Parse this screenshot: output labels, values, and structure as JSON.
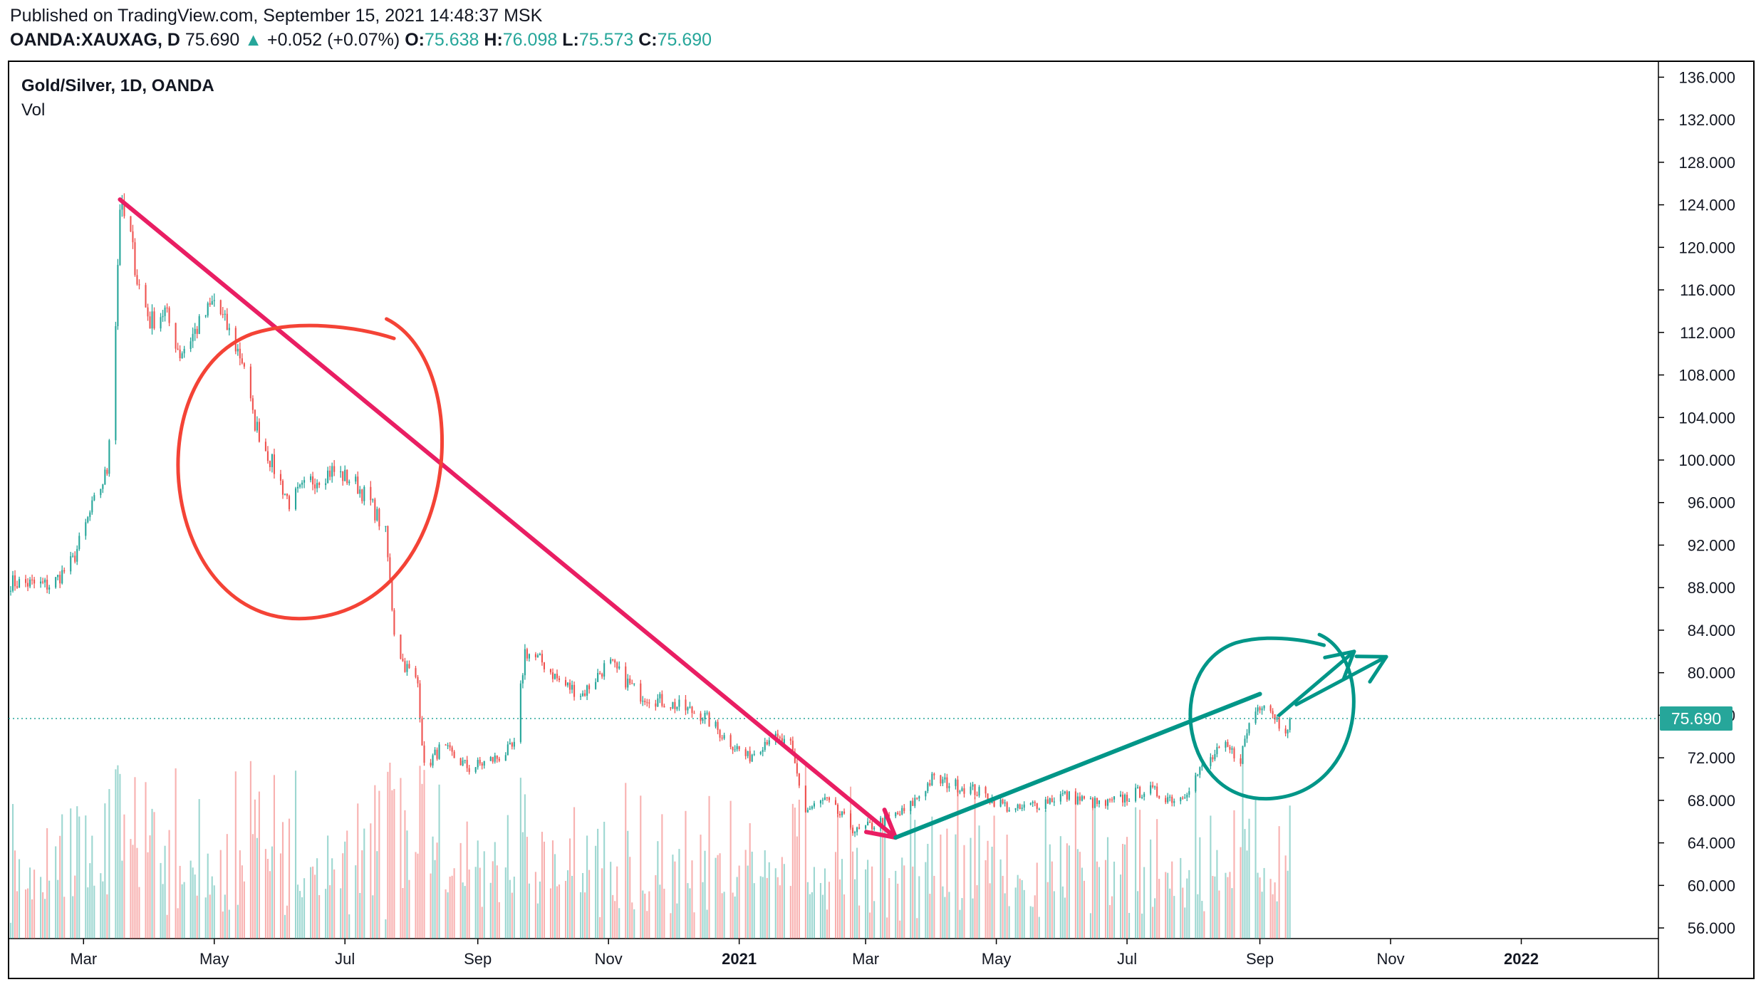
{
  "header": {
    "published": "Published on TradingView.com, September 15, 2021 14:48:37 MSK",
    "symbol": "OANDA:XAUXAG, D",
    "last": "75.690",
    "arrow": "▲",
    "change": "+0.052 (+0.07%)",
    "o_label": "O:",
    "o_value": "75.638",
    "h_label": "H:",
    "h_value": "76.098",
    "l_label": "L:",
    "l_value": "75.573",
    "c_label": "C:",
    "c_value": "75.690"
  },
  "legend": {
    "title": "Gold/Silver, 1D, OANDA",
    "indicator": "Vol"
  },
  "colors": {
    "up": "#26a69a",
    "down": "#ef5350",
    "downtrend_line": "#e91e63",
    "circle_red": "#f44336",
    "uptrend_teal": "#009688",
    "price_tag": "#26a69a",
    "axis_text": "#131722",
    "border": "#000000"
  },
  "chart_data": {
    "type": "candlestick",
    "symbol": "OANDA:XAUXAG",
    "timeframe": "1D",
    "x_ticks": [
      "Mar",
      "May",
      "Jul",
      "Sep",
      "Nov",
      "2021",
      "Mar",
      "May",
      "Jul",
      "Sep",
      "Nov",
      "2022"
    ],
    "y_ticks": [
      "136.000",
      "132.000",
      "128.000",
      "124.000",
      "120.000",
      "116.000",
      "112.000",
      "108.000",
      "104.000",
      "100.000",
      "96.000",
      "92.000",
      "88.000",
      "84.000",
      "80.000",
      "76.000",
      "72.000",
      "68.000",
      "64.000",
      "60.000",
      "56.000"
    ],
    "ylim": [
      55,
      137.5
    ],
    "last_price": "75.690",
    "last_price_value": 75.69,
    "xlim": [
      "2020-01-26",
      "2022-03-06"
    ],
    "series_close_anchors": [
      {
        "date": "2020-01-27",
        "value": 88.5
      },
      {
        "date": "2020-02-15",
        "value": 88.2
      },
      {
        "date": "2020-02-25",
        "value": 90.5
      },
      {
        "date": "2020-03-05",
        "value": 95.5
      },
      {
        "date": "2020-03-12",
        "value": 99
      },
      {
        "date": "2020-03-16",
        "value": 113
      },
      {
        "date": "2020-03-18",
        "value": 124
      },
      {
        "date": "2020-03-23",
        "value": 121
      },
      {
        "date": "2020-03-26",
        "value": 117
      },
      {
        "date": "2020-04-01",
        "value": 113
      },
      {
        "date": "2020-04-08",
        "value": 114
      },
      {
        "date": "2020-04-15",
        "value": 110
      },
      {
        "date": "2020-04-25",
        "value": 113
      },
      {
        "date": "2020-05-01",
        "value": 115
      },
      {
        "date": "2020-05-08",
        "value": 112
      },
      {
        "date": "2020-05-15",
        "value": 109
      },
      {
        "date": "2020-05-19",
        "value": 104
      },
      {
        "date": "2020-05-25",
        "value": 101
      },
      {
        "date": "2020-06-05",
        "value": 96
      },
      {
        "date": "2020-06-15",
        "value": 98
      },
      {
        "date": "2020-06-25",
        "value": 99
      },
      {
        "date": "2020-07-05",
        "value": 98
      },
      {
        "date": "2020-07-13",
        "value": 96
      },
      {
        "date": "2020-07-20",
        "value": 93
      },
      {
        "date": "2020-07-24",
        "value": 84
      },
      {
        "date": "2020-07-28",
        "value": 81
      },
      {
        "date": "2020-08-04",
        "value": 79
      },
      {
        "date": "2020-08-07",
        "value": 71
      },
      {
        "date": "2020-08-15",
        "value": 73
      },
      {
        "date": "2020-08-28",
        "value": 71
      },
      {
        "date": "2020-09-10",
        "value": 72
      },
      {
        "date": "2020-09-18",
        "value": 73
      },
      {
        "date": "2020-09-23",
        "value": 82
      },
      {
        "date": "2020-10-01",
        "value": 81
      },
      {
        "date": "2020-10-10",
        "value": 79
      },
      {
        "date": "2020-10-20",
        "value": 78
      },
      {
        "date": "2020-11-01",
        "value": 81
      },
      {
        "date": "2020-11-15",
        "value": 78
      },
      {
        "date": "2020-12-01",
        "value": 77
      },
      {
        "date": "2020-12-15",
        "value": 76
      },
      {
        "date": "2020-12-25",
        "value": 74
      },
      {
        "date": "2021-01-05",
        "value": 72
      },
      {
        "date": "2021-01-15",
        "value": 74
      },
      {
        "date": "2021-01-25",
        "value": 73
      },
      {
        "date": "2021-02-01",
        "value": 67
      },
      {
        "date": "2021-02-10",
        "value": 68
      },
      {
        "date": "2021-02-25",
        "value": 65
      },
      {
        "date": "2021-03-08",
        "value": 66
      },
      {
        "date": "2021-03-20",
        "value": 67
      },
      {
        "date": "2021-04-01",
        "value": 70
      },
      {
        "date": "2021-04-20",
        "value": 69
      },
      {
        "date": "2021-05-10",
        "value": 67
      },
      {
        "date": "2021-06-01",
        "value": 68.5
      },
      {
        "date": "2021-06-20",
        "value": 67.5
      },
      {
        "date": "2021-07-10",
        "value": 69
      },
      {
        "date": "2021-07-25",
        "value": 68
      },
      {
        "date": "2021-08-05",
        "value": 71
      },
      {
        "date": "2021-08-15",
        "value": 73
      },
      {
        "date": "2021-08-23",
        "value": 72
      },
      {
        "date": "2021-08-28",
        "value": 76
      },
      {
        "date": "2021-09-03",
        "value": 77.5
      },
      {
        "date": "2021-09-08",
        "value": 76
      },
      {
        "date": "2021-09-12",
        "value": 74.5
      },
      {
        "date": "2021-09-15",
        "value": 75.69
      }
    ],
    "annotations": [
      {
        "type": "downtrend-line-arrow",
        "color": "#e91e63",
        "from": {
          "date": "2020-03-18",
          "value": 124.5
        },
        "to": {
          "date": "2021-03-15",
          "value": 64.5
        }
      },
      {
        "type": "circle",
        "color": "#f44336",
        "center": {
          "date": "2020-06-12",
          "value": 98.5
        }
      },
      {
        "type": "uptrend-line",
        "color": "#009688",
        "from": {
          "date": "2021-03-15",
          "value": 64.5
        },
        "to": {
          "date": "2021-09-01",
          "value": 78
        }
      },
      {
        "type": "circle",
        "color": "#009688",
        "center": {
          "date": "2021-09-05",
          "value": 75.5
        }
      },
      {
        "type": "arrow",
        "color": "#009688",
        "from": {
          "date": "2021-09-10",
          "value": 76
        },
        "to": {
          "date": "2021-10-15",
          "value": 82
        }
      },
      {
        "type": "arrow",
        "color": "#009688",
        "from": {
          "date": "2021-09-18",
          "value": 77
        },
        "to": {
          "date": "2021-10-30",
          "value": 81.5
        }
      }
    ]
  }
}
